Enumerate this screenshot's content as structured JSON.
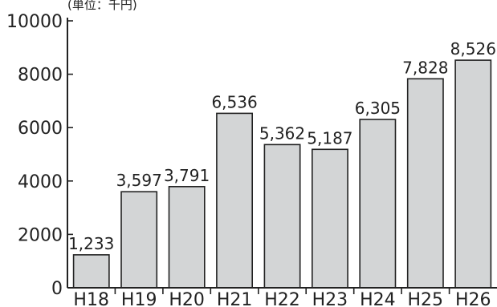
{
  "chart_data": {
    "type": "bar",
    "title": "",
    "unit_label": "(単位：千円)",
    "xlabel": "",
    "ylabel": "",
    "categories": [
      "H18",
      "H19",
      "H20",
      "H21",
      "H22",
      "H23",
      "H24",
      "H25",
      "H26"
    ],
    "values": [
      1233,
      3597,
      3791,
      6536,
      5362,
      5187,
      6305,
      7828,
      8526
    ],
    "value_labels": [
      "1,233",
      "3,597",
      "3,791",
      "6,536",
      "5,362",
      "5,187",
      "6,305",
      "7,828",
      "8,526"
    ],
    "ylim": [
      0,
      10000
    ],
    "yticks": [
      0,
      2000,
      4000,
      6000,
      8000,
      10000
    ],
    "ytick_labels": [
      "0",
      "2000",
      "4000",
      "6000",
      "8000",
      "10000"
    ],
    "grid": false,
    "legend": "none",
    "bar_color": "#d3d5d6",
    "bar_edge_color": "#222222"
  }
}
